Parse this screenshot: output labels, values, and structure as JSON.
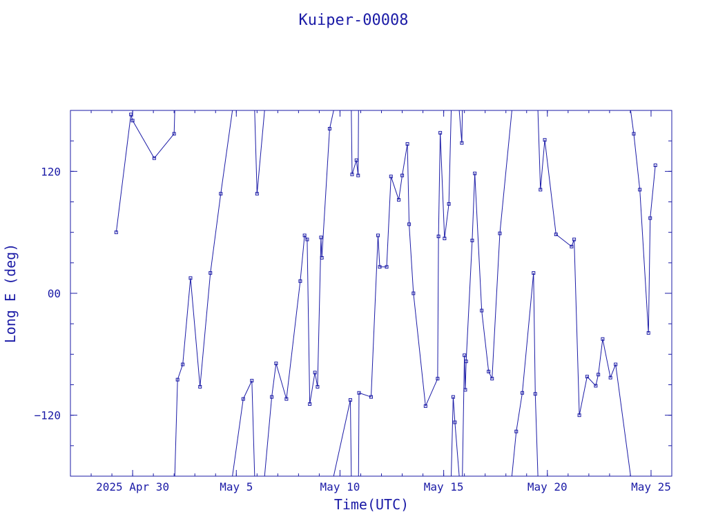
{
  "chart_data": {
    "type": "line",
    "title": "Kuiper-00008",
    "xlabel": "Time(UTC)",
    "ylabel": "Long E (deg)",
    "x_unit": "date (UTC), 2025",
    "xlim": [
      "2025-04-27T00:00",
      "2025-05-26T00:00"
    ],
    "ylim": [
      -180,
      180
    ],
    "x_ticks": [
      {
        "date": "2025-04-30",
        "label": "2025 Apr 30"
      },
      {
        "date": "2025-05-05",
        "label": "May  5"
      },
      {
        "date": "2025-05-10",
        "label": "May 10"
      },
      {
        "date": "2025-05-15",
        "label": "May 15"
      },
      {
        "date": "2025-05-20",
        "label": "May 20"
      },
      {
        "date": "2025-05-25",
        "label": "May 25"
      }
    ],
    "y_ticks": [
      {
        "value": -120,
        "label": "−120"
      },
      {
        "value": 0,
        "label": "00"
      },
      {
        "value": 120,
        "label": "120"
      }
    ],
    "grid": false,
    "legend": "none",
    "color": "#1a1aa6",
    "x": [
      "2025-04-29T05:00",
      "2025-04-29T22:00",
      "2025-04-30T00:00",
      "2025-05-01T01:00",
      "2025-05-02T00:00",
      "2025-05-02T04:00",
      "2025-05-02T10:00",
      "2025-05-02T19:00",
      "2025-05-03T06:00",
      "2025-05-03T18:00",
      "2025-05-04T06:00",
      "2025-05-05T08:00",
      "2025-05-05T18:00",
      "2025-05-06T00:00",
      "2025-05-06T17:00",
      "2025-05-06T22:00",
      "2025-05-07T10:00",
      "2025-05-08T02:00",
      "2025-05-08T07:00",
      "2025-05-08T10:00",
      "2025-05-08T13:00",
      "2025-05-08T19:00",
      "2025-05-08T22:00",
      "2025-05-09T02:00",
      "2025-05-09T03:00",
      "2025-05-09T12:00",
      "2025-05-10T12:00",
      "2025-05-10T14:00",
      "2025-05-10T19:00",
      "2025-05-10T21:00",
      "2025-05-10T22:00",
      "2025-05-11T12:00",
      "2025-05-11T20:00",
      "2025-05-11T22:00",
      "2025-05-12T06:00",
      "2025-05-12T11:00",
      "2025-05-12T20:00",
      "2025-05-13T00:00",
      "2025-05-13T06:00",
      "2025-05-13T08:00",
      "2025-05-13T13:00",
      "2025-05-14T03:00",
      "2025-05-14T17:00",
      "2025-05-14T18:00",
      "2025-05-14T20:00",
      "2025-05-15T01:00",
      "2025-05-15T06:00",
      "2025-05-15T11:00",
      "2025-05-15T13:00",
      "2025-05-15T21:00",
      "2025-05-16T00:00",
      "2025-05-16T01:00",
      "2025-05-16T02:00",
      "2025-05-16T09:00",
      "2025-05-16T12:00",
      "2025-05-16T20:00",
      "2025-05-17T04:00",
      "2025-05-17T08:00",
      "2025-05-17T17:00",
      "2025-05-18T12:00",
      "2025-05-18T19:00",
      "2025-05-19T08:00",
      "2025-05-19T10:00",
      "2025-05-19T16:00",
      "2025-05-19T21:00",
      "2025-05-20T10:00",
      "2025-05-21T04:00",
      "2025-05-21T07:00",
      "2025-05-21T13:00",
      "2025-05-21T22:00",
      "2025-05-22T08:00",
      "2025-05-22T11:00",
      "2025-05-22T16:00",
      "2025-05-23T01:00",
      "2025-05-23T07:00",
      "2025-05-24T04:00",
      "2025-05-24T11:00",
      "2025-05-24T21:00",
      "2025-05-24T23:00",
      "2025-05-25T05:00"
    ],
    "y": [
      60,
      176,
      170,
      133,
      157,
      -85,
      -70,
      15,
      -92,
      20,
      98,
      -104,
      -86,
      98,
      -102,
      -69,
      -104,
      12,
      57,
      53,
      -109,
      -78,
      -92,
      55,
      35,
      162,
      -105,
      117,
      131,
      116,
      -98,
      -102,
      57,
      26,
      26,
      115,
      92,
      116,
      147,
      68,
      0,
      -111,
      -84,
      56,
      158,
      54,
      88,
      -102,
      -127,
      148,
      -61,
      -95,
      -67,
      52,
      118,
      -17,
      -77,
      -84,
      59,
      -136,
      -98,
      20,
      -99,
      102,
      151,
      58,
      46,
      53,
      -120,
      -82,
      -91,
      -80,
      -45,
      -83,
      -70,
      157,
      102,
      -39,
      74,
      126
    ]
  }
}
